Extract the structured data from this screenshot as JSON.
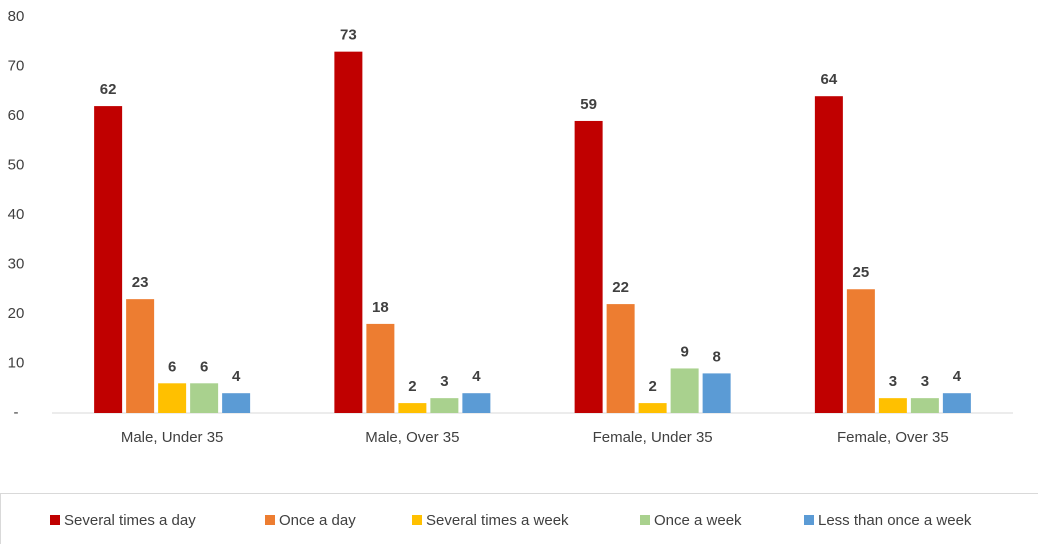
{
  "chart_data": {
    "type": "bar",
    "categories": [
      "Male, Under 35",
      "Male, Over 35",
      "Female, Under 35",
      "Female, Over 35"
    ],
    "series": [
      {
        "name": "Several times a day",
        "color": "#c00000",
        "values": [
          62,
          73,
          59,
          64
        ]
      },
      {
        "name": "Once a day",
        "color": "#ed7d31",
        "values": [
          23,
          18,
          22,
          25
        ]
      },
      {
        "name": "Several times a week",
        "color": "#ffc000",
        "values": [
          6,
          2,
          2,
          3
        ]
      },
      {
        "name": "Once a week",
        "color": "#a9d18e",
        "values": [
          6,
          3,
          9,
          3
        ]
      },
      {
        "name": "Less than once a week",
        "color": "#5b9bd5",
        "values": [
          4,
          4,
          8,
          4
        ]
      }
    ],
    "ylim": [
      0,
      80
    ],
    "yticks": [
      {
        "value": 0,
        "label": "-"
      },
      10,
      20,
      30,
      40,
      50,
      60,
      70,
      80
    ],
    "grid": false,
    "legend": "bottom"
  }
}
